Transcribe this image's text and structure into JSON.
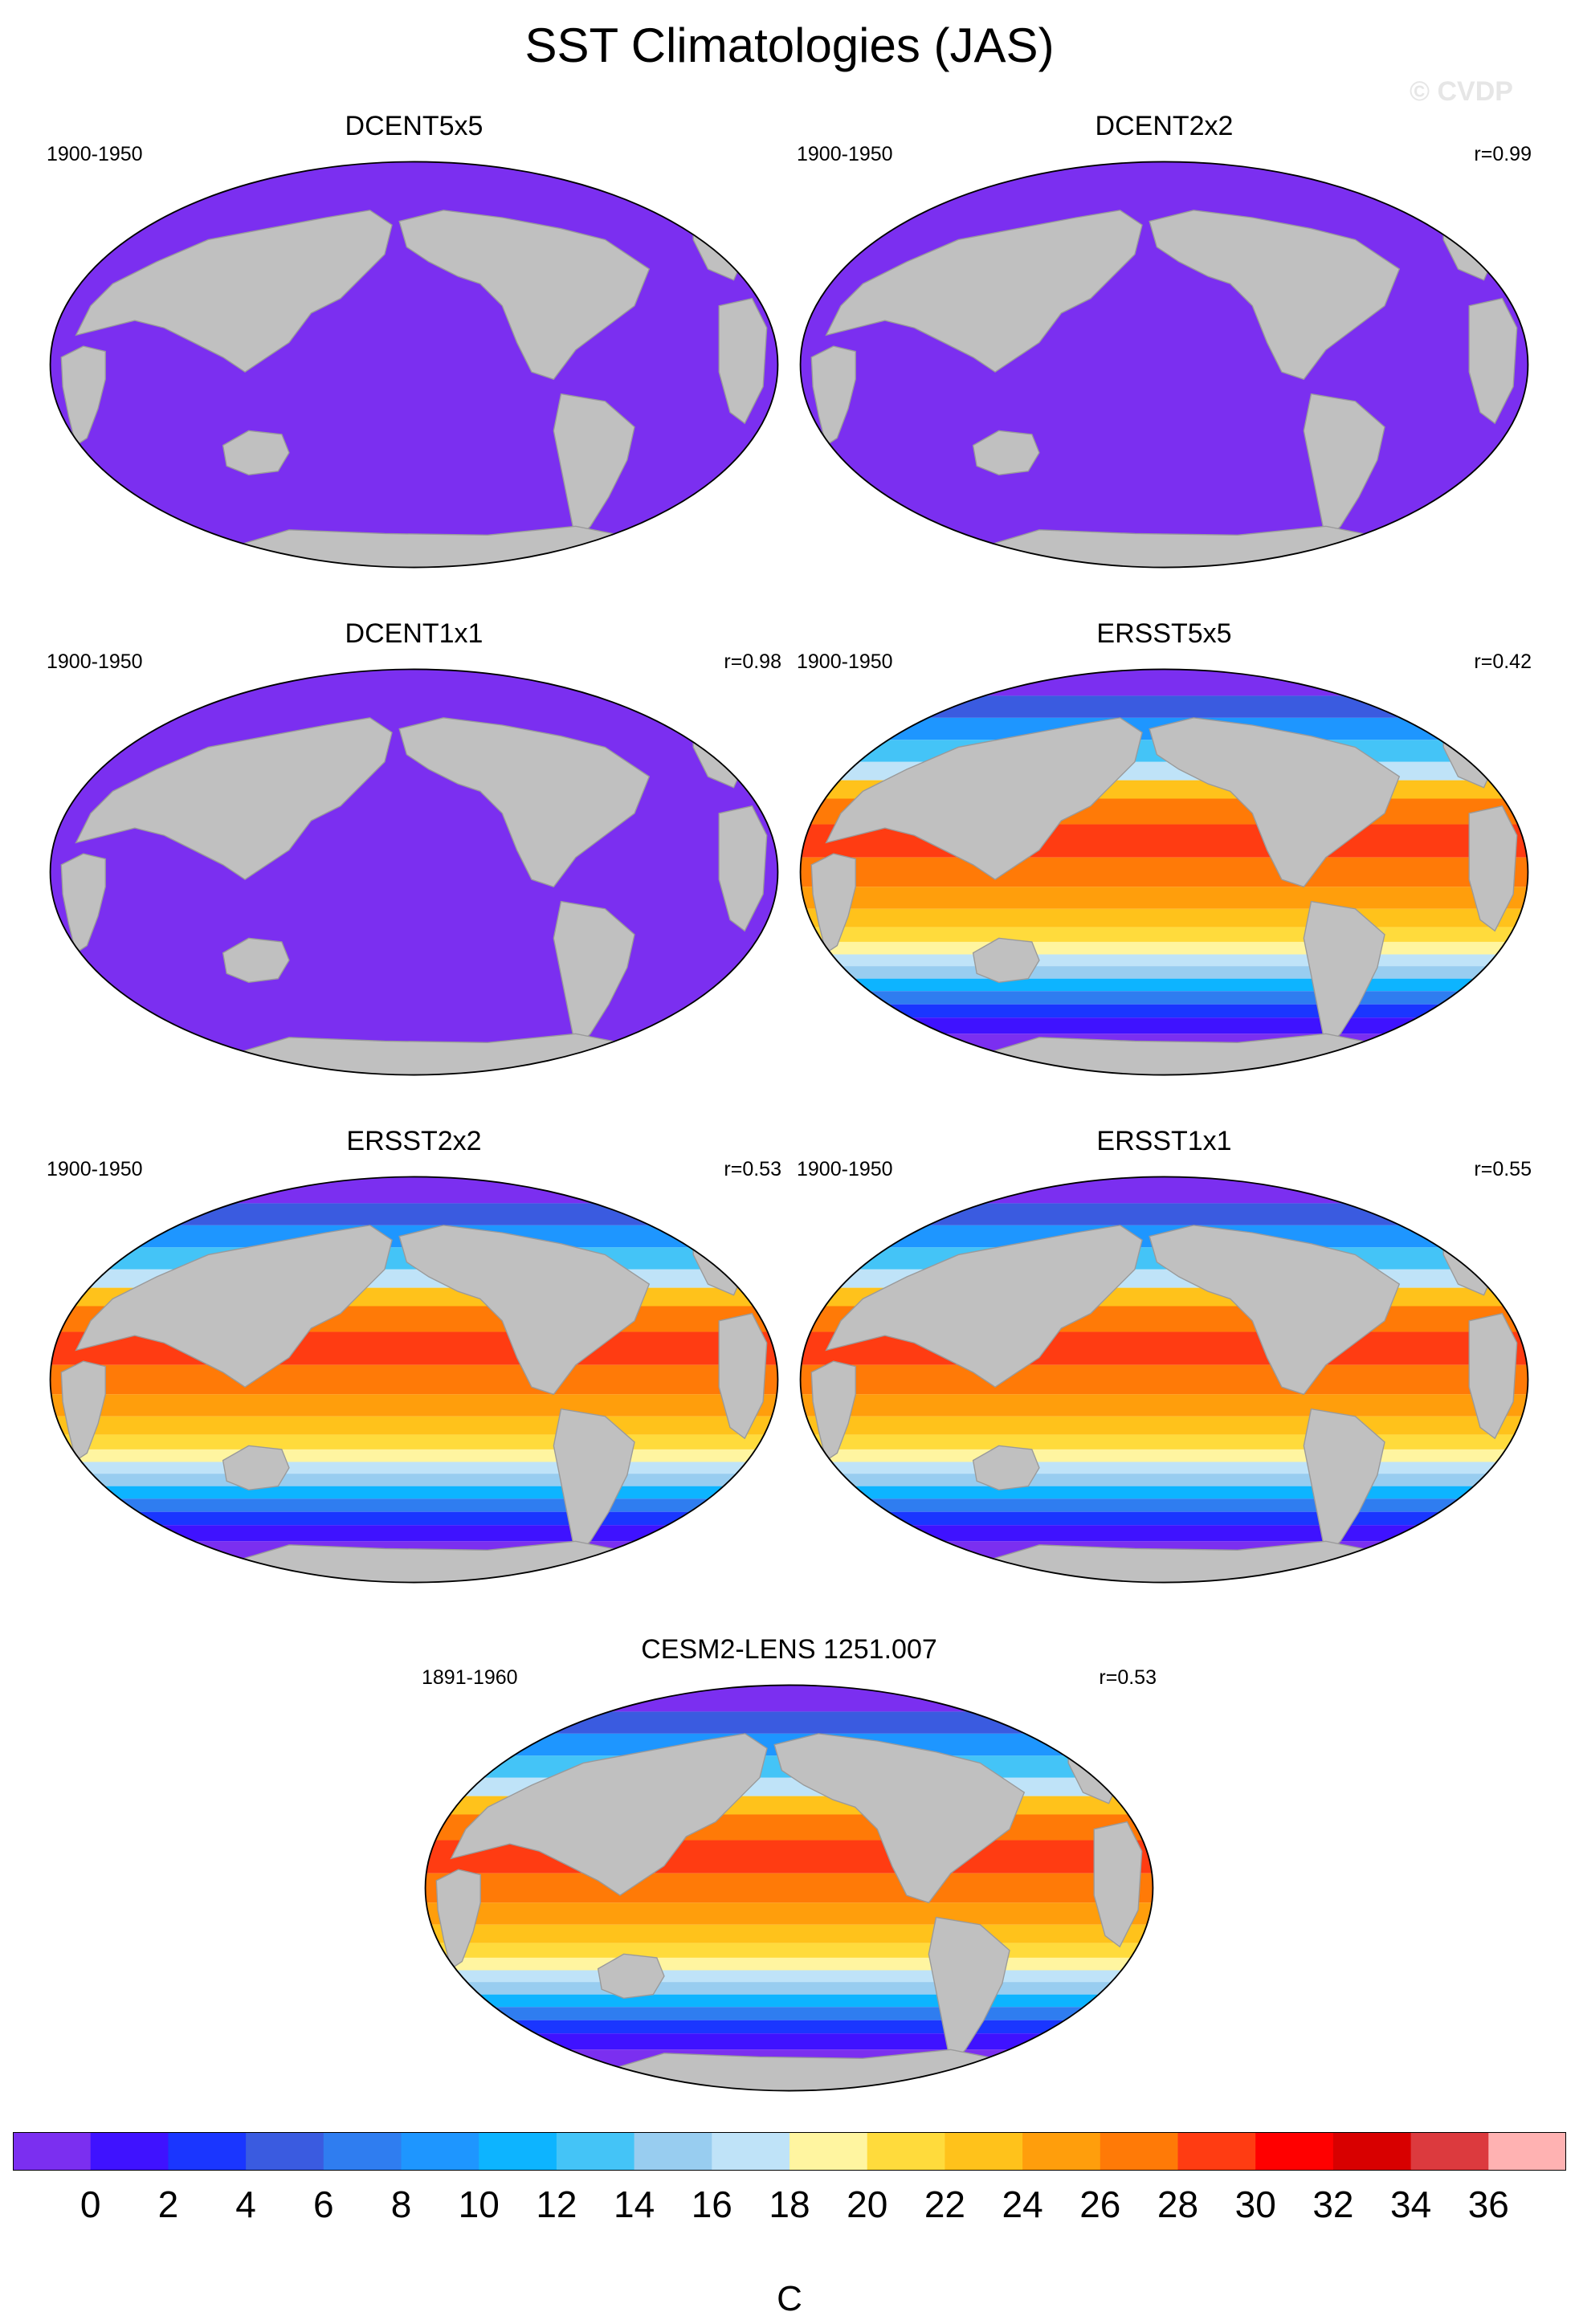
{
  "title": "SST Climatologies (JAS)",
  "watermark": "© CVDP",
  "land_color": "#c0c0c0",
  "missing_color": "#ffffff",
  "panels": [
    {
      "name": "DCENT5x5",
      "years": "1900-1950",
      "r": "",
      "field": "uniform_low"
    },
    {
      "name": "DCENT2x2",
      "years": "1900-1950",
      "r": "r=0.99",
      "field": "uniform_low"
    },
    {
      "name": "DCENT1x1",
      "years": "1900-1950",
      "r": "r=0.98",
      "field": "uniform_low"
    },
    {
      "name": "ERSST5x5",
      "years": "1900-1950",
      "r": "r=0.42",
      "field": "sst"
    },
    {
      "name": "ERSST2x2",
      "years": "1900-1950",
      "r": "r=0.53",
      "field": "sst"
    },
    {
      "name": "ERSST1x1",
      "years": "1900-1950",
      "r": "r=0.55",
      "field": "sst"
    },
    {
      "name": "CESM2-LENS 1251.007",
      "years": "1891-1960",
      "r": "r=0.53",
      "field": "sst"
    }
  ],
  "colorbar": {
    "colors": [
      "#7b2ff0",
      "#3f12ff",
      "#1a36ff",
      "#3a5be0",
      "#2f7df0",
      "#1e96ff",
      "#0db4ff",
      "#44c4f7",
      "#98cdf0",
      "#bfe3f8",
      "#fff5a0",
      "#ffdb3c",
      "#ffc21b",
      "#ff9e0c",
      "#ff7a07",
      "#ff3c12",
      "#ff0000",
      "#d80000",
      "#dc3a3e",
      "#ffb2b2"
    ],
    "labels": [
      "0",
      "2",
      "4",
      "6",
      "8",
      "10",
      "12",
      "14",
      "16",
      "18",
      "20",
      "22",
      "24",
      "26",
      "28",
      "30",
      "32",
      "34",
      "36"
    ],
    "unit": "C"
  }
}
